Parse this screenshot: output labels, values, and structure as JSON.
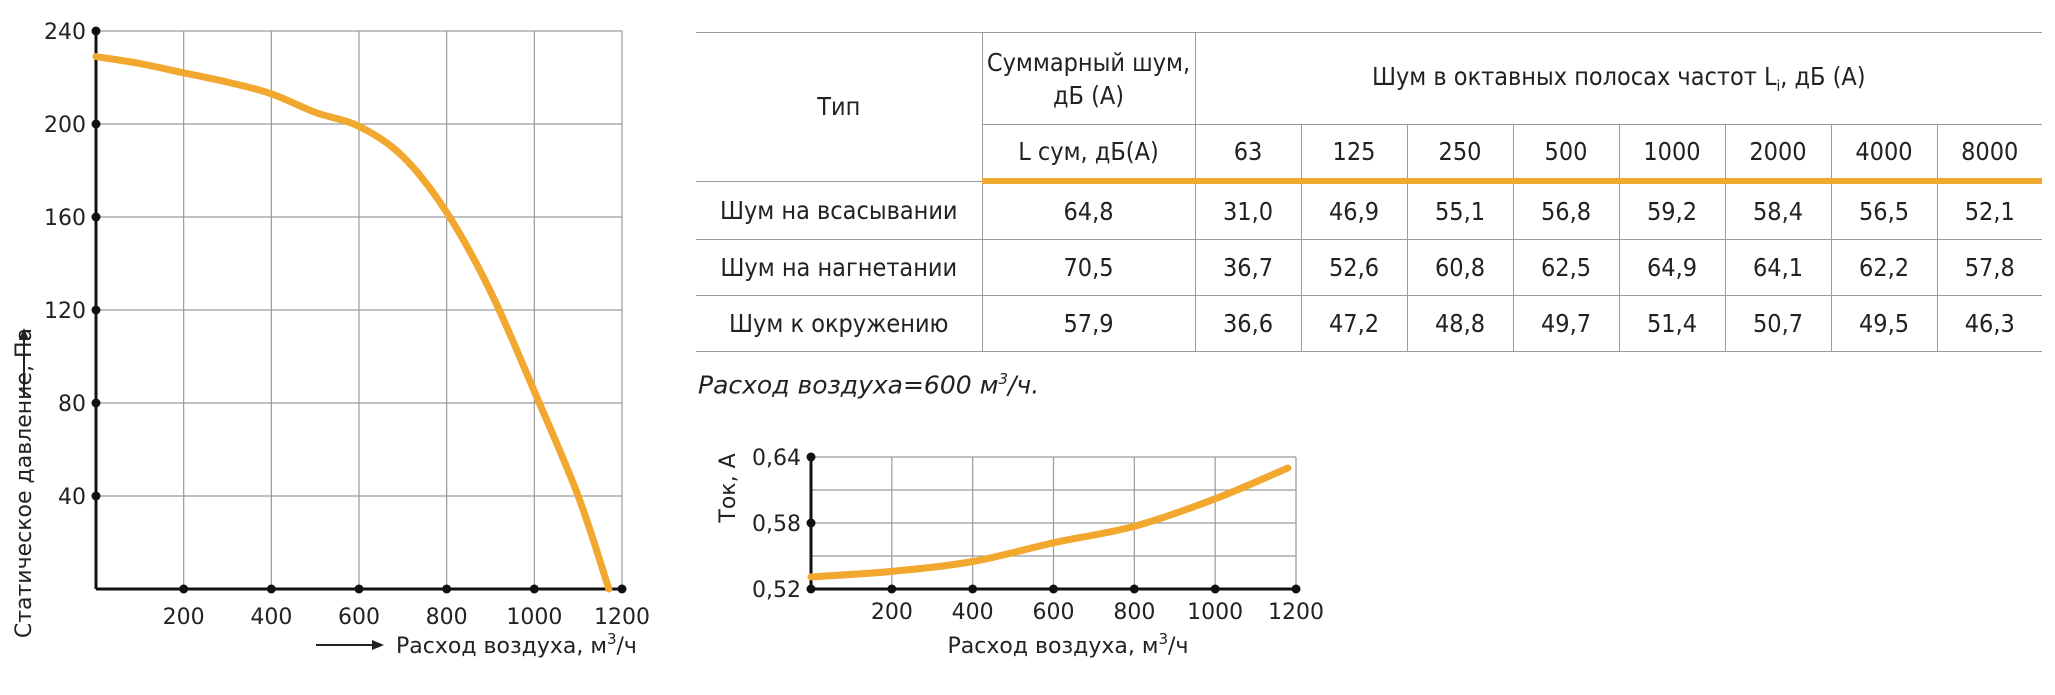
{
  "chart_data": [
    {
      "type": "line",
      "id": "pressure",
      "x": [
        0,
        100,
        200,
        300,
        400,
        500,
        600,
        700,
        800,
        900,
        1000,
        1100,
        1170
      ],
      "y": [
        229,
        226,
        222,
        218,
        213,
        205,
        199,
        186,
        162,
        128,
        85,
        40,
        0
      ],
      "xlim": [
        0,
        1200
      ],
      "ylim": [
        0,
        240
      ],
      "xticks": [
        "200",
        "400",
        "600",
        "800",
        "1000",
        "1200"
      ],
      "yticks": [
        "40",
        "80",
        "120",
        "160",
        "200",
        "240"
      ],
      "xlabel": "Расход воздуха, м",
      "xlabel_sup": "3",
      "xlabel_suffix": "/ч",
      "ylabel": "Статическое давление, Па",
      "grid": true,
      "color": "#f2a72e"
    },
    {
      "type": "line",
      "id": "current",
      "x": [
        0,
        200,
        400,
        600,
        800,
        1000,
        1180
      ],
      "y": [
        0.531,
        0.536,
        0.545,
        0.562,
        0.577,
        0.602,
        0.63
      ],
      "xlim": [
        0,
        1200
      ],
      "ylim": [
        0.52,
        0.64
      ],
      "xticks": [
        "200",
        "400",
        "600",
        "800",
        "1000",
        "1200"
      ],
      "yticks": [
        "0,52",
        "0,58",
        "0,64"
      ],
      "xlabel": "Расход воздуха, м",
      "xlabel_sup": "3",
      "xlabel_suffix": "/ч",
      "ylabel": "Ток, А",
      "grid": true,
      "color": "#f2a72e"
    }
  ],
  "table": {
    "type_header": "Тип",
    "total_header": "Суммарный шум, дБ (А)",
    "octave_header": "Шум в октавных полосах частот L",
    "octave_header_sub": "i",
    "octave_header_suffix": ", дБ (А)",
    "total_subheader": "L сум, дБ(А)",
    "bands": [
      "63",
      "125",
      "250",
      "500",
      "1000",
      "2000",
      "4000",
      "8000"
    ],
    "rows": [
      {
        "label": "Шум на всасывании",
        "total": "64,8",
        "values": [
          "31,0",
          "46,9",
          "55,1",
          "56,8",
          "59,2",
          "58,4",
          "56,5",
          "52,1"
        ]
      },
      {
        "label": "Шум на нагнетании",
        "total": "70,5",
        "values": [
          "36,7",
          "52,6",
          "60,8",
          "62,5",
          "64,9",
          "64,1",
          "62,2",
          "57,8"
        ]
      },
      {
        "label": "Шум к окружению",
        "total": "57,9",
        "values": [
          "36,6",
          "47,2",
          "48,8",
          "49,7",
          "51,4",
          "50,7",
          "49,5",
          "46,3"
        ]
      }
    ]
  },
  "note": {
    "prefix": "Расход воздуха=600 м",
    "sup": "3",
    "suffix": "/ч."
  }
}
